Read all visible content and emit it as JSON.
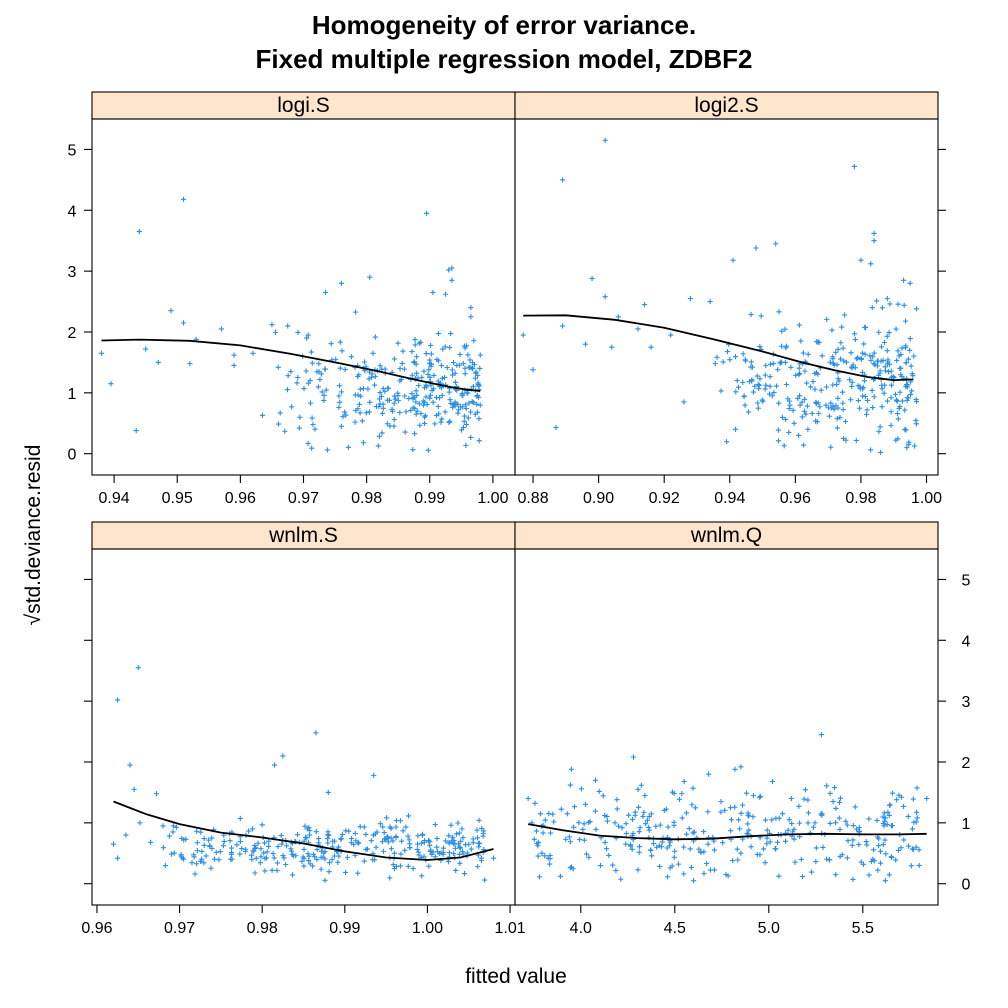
{
  "chart_data": {
    "type": "scatter",
    "title_line1": "Homogeneity of error variance.",
    "title_line2": "Fixed multiple regression model, ZDBF2",
    "xlabel": "fitted value",
    "ylabel": "std.deviance.resid",
    "ylabel_prefix": "√",
    "ylim": [
      -0.35,
      5.5
    ],
    "yticks": [
      0,
      1,
      2,
      3,
      4,
      5
    ],
    "grid": false,
    "panels": [
      {
        "name": "logi.S",
        "xlim": [
          0.9365,
          1.0035
        ],
        "xticks": [
          0.94,
          0.95,
          0.96,
          0.97,
          0.98,
          0.99,
          1.0
        ],
        "xtick_labels": [
          "0.94",
          "0.95",
          "0.96",
          "0.97",
          "0.98",
          "0.99",
          "1.00"
        ],
        "spread": {
          "seed": 11,
          "n": 320,
          "xmin": 0.965,
          "xmax": 0.998,
          "xshape": 1.8,
          "ymid": 1.1,
          "ysd": 0.45
        },
        "points": [
          [
            0.938,
            1.65
          ],
          [
            0.9395,
            1.15
          ],
          [
            0.9435,
            0.38
          ],
          [
            0.944,
            3.65
          ],
          [
            0.945,
            1.72
          ],
          [
            0.947,
            1.5
          ],
          [
            0.949,
            2.35
          ],
          [
            0.951,
            4.18
          ],
          [
            0.951,
            2.15
          ],
          [
            0.952,
            1.48
          ],
          [
            0.953,
            1.88
          ],
          [
            0.957,
            2.05
          ],
          [
            0.959,
            1.62
          ],
          [
            0.959,
            1.45
          ],
          [
            0.962,
            1.65
          ],
          [
            0.9635,
            0.63
          ],
          [
            0.965,
            2.12
          ],
          [
            0.966,
            1.42
          ],
          [
            0.9675,
            2.1
          ],
          [
            0.968,
            1.35
          ],
          [
            0.9705,
            1.9
          ],
          [
            0.9715,
            0.48
          ],
          [
            0.9735,
            2.65
          ],
          [
            0.976,
            2.8
          ],
          [
            0.976,
            0.45
          ],
          [
            0.9795,
            0.18
          ],
          [
            0.9805,
            2.9
          ],
          [
            0.9895,
            3.95
          ],
          [
            0.9905,
            2.65
          ],
          [
            0.9925,
            2.62
          ],
          [
            0.993,
            3.02
          ],
          [
            0.9935,
            3.05
          ],
          [
            0.9935,
            2.85
          ],
          [
            0.9965,
            2.4
          ],
          [
            0.9965,
            2.25
          ],
          [
            0.998,
            1.62
          ]
        ],
        "smooth": [
          [
            0.938,
            1.86
          ],
          [
            0.944,
            1.875
          ],
          [
            0.952,
            1.855
          ],
          [
            0.96,
            1.78
          ],
          [
            0.968,
            1.64
          ],
          [
            0.976,
            1.48
          ],
          [
            0.982,
            1.35
          ],
          [
            0.988,
            1.21
          ],
          [
            0.993,
            1.1
          ],
          [
            0.996,
            1.05
          ],
          [
            0.998,
            1.03
          ]
        ]
      },
      {
        "name": "logi2.S",
        "xlim": [
          0.8745,
          1.0035
        ],
        "xticks": [
          0.88,
          0.9,
          0.92,
          0.94,
          0.96,
          0.98,
          1.0
        ],
        "xtick_labels": [
          "0.88",
          "0.90",
          "0.92",
          "0.94",
          "0.96",
          "0.98",
          "1.00"
        ],
        "spread": {
          "seed": 23,
          "n": 320,
          "xmin": 0.935,
          "xmax": 0.997,
          "xshape": 1.7,
          "ymid": 1.25,
          "ysd": 0.5
        },
        "points": [
          [
            0.877,
            1.95
          ],
          [
            0.88,
            1.38
          ],
          [
            0.887,
            0.43
          ],
          [
            0.889,
            4.5
          ],
          [
            0.889,
            2.1
          ],
          [
            0.896,
            1.8
          ],
          [
            0.898,
            2.88
          ],
          [
            0.902,
            5.15
          ],
          [
            0.902,
            2.58
          ],
          [
            0.904,
            1.75
          ],
          [
            0.906,
            2.25
          ],
          [
            0.912,
            2.05
          ],
          [
            0.914,
            2.45
          ],
          [
            0.916,
            1.75
          ],
          [
            0.922,
            1.95
          ],
          [
            0.926,
            0.85
          ],
          [
            0.928,
            2.55
          ],
          [
            0.934,
            2.5
          ],
          [
            0.941,
            3.18
          ],
          [
            0.948,
            3.38
          ],
          [
            0.954,
            3.45
          ],
          [
            0.961,
            0.3
          ],
          [
            0.973,
            0.75
          ],
          [
            0.978,
            4.72
          ],
          [
            0.98,
            3.18
          ],
          [
            0.983,
            3.12
          ],
          [
            0.984,
            3.62
          ],
          [
            0.984,
            3.5
          ],
          [
            0.993,
            2.85
          ],
          [
            0.995,
            2.8
          ],
          [
            0.986,
            0.02
          ],
          [
            0.994,
            0.1
          ],
          [
            0.958,
            0.35
          ]
        ],
        "smooth": [
          [
            0.877,
            2.27
          ],
          [
            0.89,
            2.275
          ],
          [
            0.905,
            2.2
          ],
          [
            0.92,
            2.07
          ],
          [
            0.935,
            1.88
          ],
          [
            0.95,
            1.68
          ],
          [
            0.962,
            1.5
          ],
          [
            0.972,
            1.37
          ],
          [
            0.982,
            1.26
          ],
          [
            0.99,
            1.21
          ],
          [
            0.996,
            1.22
          ]
        ]
      },
      {
        "name": "wnlm.S",
        "xlim": [
          0.9594,
          1.0106
        ],
        "xticks": [
          0.96,
          0.97,
          0.98,
          0.99,
          1.0,
          1.01
        ],
        "xtick_labels": [
          "0.96",
          "0.97",
          "0.98",
          "0.99",
          "1.00",
          "1.01"
        ],
        "spread": {
          "seed": 37,
          "n": 330,
          "xmin": 0.967,
          "xmax": 1.007,
          "xshape": 1.3,
          "ymid": 0.58,
          "ysd": 0.22
        },
        "points": [
          [
            0.962,
            0.65
          ],
          [
            0.9625,
            3.02
          ],
          [
            0.9625,
            0.42
          ],
          [
            0.9635,
            0.8
          ],
          [
            0.964,
            1.95
          ],
          [
            0.9645,
            1.55
          ],
          [
            0.965,
            3.55
          ],
          [
            0.9652,
            1.0
          ],
          [
            0.9665,
            0.68
          ],
          [
            0.9672,
            1.48
          ],
          [
            0.968,
            0.95
          ],
          [
            0.9692,
            0.85
          ],
          [
            0.9705,
            0.72
          ],
          [
            0.9815,
            1.95
          ],
          [
            0.9825,
            2.1
          ],
          [
            0.9865,
            2.48
          ],
          [
            0.988,
            1.5
          ],
          [
            0.9935,
            1.78
          ],
          [
            1.006,
            0.88
          ],
          [
            1.008,
            0.42
          ]
        ],
        "smooth": [
          [
            0.962,
            1.35
          ],
          [
            0.966,
            1.14
          ],
          [
            0.97,
            0.98
          ],
          [
            0.975,
            0.84
          ],
          [
            0.98,
            0.76
          ],
          [
            0.985,
            0.66
          ],
          [
            0.99,
            0.53
          ],
          [
            0.995,
            0.43
          ],
          [
            1.0,
            0.39
          ],
          [
            1.004,
            0.43
          ],
          [
            1.008,
            0.57
          ]
        ]
      },
      {
        "name": "wnlm.Q",
        "xlim": [
          3.65,
          5.9
        ],
        "xticks": [
          4.0,
          4.5,
          5.0,
          5.5
        ],
        "xtick_labels": [
          "4.0",
          "4.5",
          "5.0",
          "5.5"
        ],
        "spread": {
          "seed": 51,
          "n": 340,
          "xmin": 3.75,
          "xmax": 5.8,
          "xshape": 1.0,
          "ymid": 0.8,
          "ysd": 0.38
        },
        "points": [
          [
            3.72,
            1.4
          ],
          [
            3.74,
            1.0
          ],
          [
            3.95,
            1.88
          ],
          [
            4.28,
            2.08
          ],
          [
            4.55,
            1.68
          ],
          [
            4.68,
            1.8
          ],
          [
            4.82,
            1.88
          ],
          [
            5.02,
            1.68
          ],
          [
            5.12,
            1.4
          ],
          [
            5.28,
            2.45
          ],
          [
            5.35,
            1.58
          ],
          [
            5.48,
            0.85
          ],
          [
            5.62,
            1.08
          ],
          [
            5.68,
            1.38
          ],
          [
            5.8,
            0.3
          ],
          [
            5.84,
            1.4
          ],
          [
            5.62,
            0.05
          ],
          [
            4.6,
            0.05
          ]
        ],
        "smooth": [
          [
            3.72,
            0.98
          ],
          [
            3.9,
            0.88
          ],
          [
            4.1,
            0.79
          ],
          [
            4.3,
            0.75
          ],
          [
            4.5,
            0.73
          ],
          [
            4.7,
            0.74
          ],
          [
            4.9,
            0.78
          ],
          [
            5.1,
            0.81
          ],
          [
            5.3,
            0.82
          ],
          [
            5.5,
            0.81
          ],
          [
            5.7,
            0.81
          ],
          [
            5.84,
            0.82
          ]
        ]
      }
    ]
  }
}
